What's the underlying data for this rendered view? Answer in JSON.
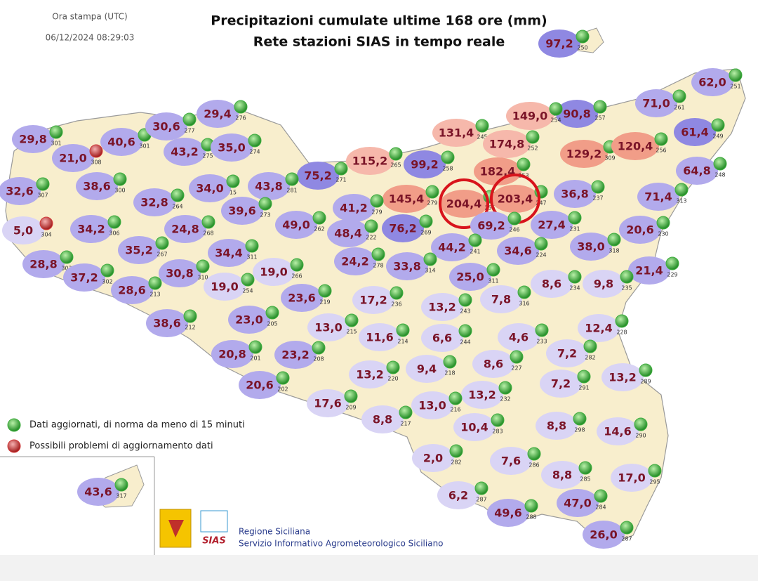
{
  "header": {
    "print_label": "Ora stampa (UTC)",
    "timestamp": "06/12/2024 08:29:03",
    "title": "Precipitazioni cumulate ultime 168 ore (mm)",
    "subtitle": "Rete stazioni SIAS in tempo reale"
  },
  "legend": [
    {
      "label": "Dati aggiornati, di norma da meno di 15 minuti",
      "color": "#3fae3f"
    },
    {
      "label": "Possibili problemi di aggiornamento dati",
      "color": "#d23b3b"
    }
  ],
  "footer": {
    "org": "Regione Siciliana",
    "service": "Servizio Informativo Agrometeorologico Siciliano",
    "logo_text": "SIAS"
  },
  "bubble_colors": {
    "dark": "#8f88e2",
    "mid": "#b2aaec",
    "light": "#d9d4f5",
    "pink": "#f6b8ab",
    "salmon": "#f19d88"
  },
  "stations": [
    {
      "v": "97,2",
      "id": "250",
      "c": "dark"
    },
    {
      "v": "62,0",
      "id": "251",
      "c": "mid"
    },
    {
      "v": "71,0",
      "id": "261",
      "c": "mid"
    },
    {
      "v": "90,8",
      "id": "257",
      "c": "dark"
    },
    {
      "v": "149,0",
      "id": "254",
      "c": "pink"
    },
    {
      "v": "131,4",
      "id": "245",
      "c": "pink"
    },
    {
      "v": "174,8",
      "id": "252",
      "c": "pink"
    },
    {
      "v": "61,4",
      "id": "249",
      "c": "dark"
    },
    {
      "v": "129,2",
      "id": "309",
      "c": "salmon"
    },
    {
      "v": "120,4",
      "id": "256",
      "c": "salmon"
    },
    {
      "v": "115,2",
      "id": "265",
      "c": "pink"
    },
    {
      "v": "99,2",
      "id": "258",
      "c": "dark"
    },
    {
      "v": "182,4",
      "id": "253",
      "c": "salmon"
    },
    {
      "v": "64,8",
      "id": "248",
      "c": "mid"
    },
    {
      "v": "75,2",
      "id": "271",
      "c": "dark"
    },
    {
      "v": "145,4",
      "id": "279",
      "c": "salmon"
    },
    {
      "v": "204,4",
      "id": "255",
      "c": "salmon",
      "circled": true
    },
    {
      "v": "203,4",
      "id": "247",
      "c": "salmon",
      "circled": true
    },
    {
      "v": "36,8",
      "id": "237",
      "c": "mid"
    },
    {
      "v": "71,4",
      "id": "313",
      "c": "mid"
    },
    {
      "v": "29,8",
      "id": "301",
      "c": "mid"
    },
    {
      "v": "21,0",
      "id": "308",
      "c": "mid",
      "pin": 1
    },
    {
      "v": "40,6",
      "id": "301",
      "c": "mid"
    },
    {
      "v": "30,6",
      "id": "277",
      "c": "mid"
    },
    {
      "v": "29,4",
      "id": "276",
      "c": "mid"
    },
    {
      "v": "43,2",
      "id": "275",
      "c": "mid"
    },
    {
      "v": "35,0",
      "id": "274",
      "c": "mid"
    },
    {
      "v": "38,6",
      "id": "300",
      "c": "mid"
    },
    {
      "v": "34,0",
      "id": "15",
      "c": "mid"
    },
    {
      "v": "43,8",
      "id": "281",
      "c": "mid"
    },
    {
      "v": "32,6",
      "id": "307",
      "c": "mid"
    },
    {
      "v": "32,8",
      "id": "264",
      "c": "mid"
    },
    {
      "v": "39,6",
      "id": "273",
      "c": "mid"
    },
    {
      "v": "41,2",
      "id": "279",
      "c": "mid"
    },
    {
      "v": "49,0",
      "id": "262",
      "c": "mid"
    },
    {
      "v": "5,0",
      "id": "304",
      "c": "light",
      "pin": 1
    },
    {
      "v": "34,2",
      "id": "306",
      "c": "mid"
    },
    {
      "v": "24,8",
      "id": "268",
      "c": "mid"
    },
    {
      "v": "48,4",
      "id": "222",
      "c": "mid"
    },
    {
      "v": "76,2",
      "id": "269",
      "c": "dark"
    },
    {
      "v": "69,2",
      "id": "246",
      "c": "mid"
    },
    {
      "v": "27,4",
      "id": "231",
      "c": "mid"
    },
    {
      "v": "20,6",
      "id": "230",
      "c": "mid"
    },
    {
      "v": "35,2",
      "id": "267",
      "c": "mid"
    },
    {
      "v": "34,4",
      "id": "311",
      "c": "mid"
    },
    {
      "v": "44,2",
      "id": "241",
      "c": "mid"
    },
    {
      "v": "34,6",
      "id": "224",
      "c": "mid"
    },
    {
      "v": "38,0",
      "id": "318",
      "c": "mid"
    },
    {
      "v": "28,8",
      "id": "303",
      "c": "mid"
    },
    {
      "v": "37,2",
      "id": "302",
      "c": "mid"
    },
    {
      "v": "30,8",
      "id": "310",
      "c": "mid"
    },
    {
      "v": "24,2",
      "id": "278",
      "c": "mid"
    },
    {
      "v": "33,8",
      "id": "314",
      "c": "mid"
    },
    {
      "v": "25,0",
      "id": "311",
      "c": "mid"
    },
    {
      "v": "21,4",
      "id": "229",
      "c": "mid"
    },
    {
      "v": "19,0",
      "id": "266",
      "c": "light"
    },
    {
      "v": "19,0",
      "id": "254",
      "c": "light"
    },
    {
      "v": "28,6",
      "id": "213",
      "c": "mid"
    },
    {
      "v": "8,6",
      "id": "234",
      "c": "light"
    },
    {
      "v": "9,8",
      "id": "235",
      "c": "light"
    },
    {
      "v": "23,6",
      "id": "219",
      "c": "mid"
    },
    {
      "v": "17,2",
      "id": "236",
      "c": "light"
    },
    {
      "v": "13,2",
      "id": "243",
      "c": "light"
    },
    {
      "v": "7,8",
      "id": "316",
      "c": "light"
    },
    {
      "v": "38,6",
      "id": "212",
      "c": "mid"
    },
    {
      "v": "23,0",
      "id": "205",
      "c": "mid"
    },
    {
      "v": "13,0",
      "id": "215",
      "c": "light"
    },
    {
      "v": "12,4",
      "id": "228",
      "c": "light"
    },
    {
      "v": "11,6",
      "id": "214",
      "c": "light"
    },
    {
      "v": "6,6",
      "id": "244",
      "c": "light"
    },
    {
      "v": "4,6",
      "id": "233",
      "c": "light"
    },
    {
      "v": "20,8",
      "id": "201",
      "c": "mid"
    },
    {
      "v": "23,2",
      "id": "208",
      "c": "mid"
    },
    {
      "v": "7,2",
      "id": "282",
      "c": "light"
    },
    {
      "v": "8,6",
      "id": "227",
      "c": "light"
    },
    {
      "v": "13,2",
      "id": "220",
      "c": "light"
    },
    {
      "v": "9,4",
      "id": "218",
      "c": "light"
    },
    {
      "v": "13,2",
      "id": "289",
      "c": "light"
    },
    {
      "v": "7,2",
      "id": "291",
      "c": "light"
    },
    {
      "v": "20,6",
      "id": "202",
      "c": "mid"
    },
    {
      "v": "13,2",
      "id": "232",
      "c": "light"
    },
    {
      "v": "17,6",
      "id": "209",
      "c": "light"
    },
    {
      "v": "13,0",
      "id": "216",
      "c": "light"
    },
    {
      "v": "8,8",
      "id": "217",
      "c": "light"
    },
    {
      "v": "10,4",
      "id": "283",
      "c": "light"
    },
    {
      "v": "8,8",
      "id": "298",
      "c": "light"
    },
    {
      "v": "14,6",
      "id": "290",
      "c": "light"
    },
    {
      "v": "2,0",
      "id": "282",
      "c": "light"
    },
    {
      "v": "7,6",
      "id": "286",
      "c": "light"
    },
    {
      "v": "8,8",
      "id": "285",
      "c": "light"
    },
    {
      "v": "17,0",
      "id": "295",
      "c": "light"
    },
    {
      "v": "43,6",
      "id": "317",
      "c": "mid"
    },
    {
      "v": "6,2",
      "id": "287",
      "c": "light"
    },
    {
      "v": "47,0",
      "id": "284",
      "c": "mid"
    },
    {
      "v": "49,6",
      "id": "288",
      "c": "mid"
    },
    {
      "v": "26,0",
      "id": "287",
      "c": "mid"
    }
  ]
}
